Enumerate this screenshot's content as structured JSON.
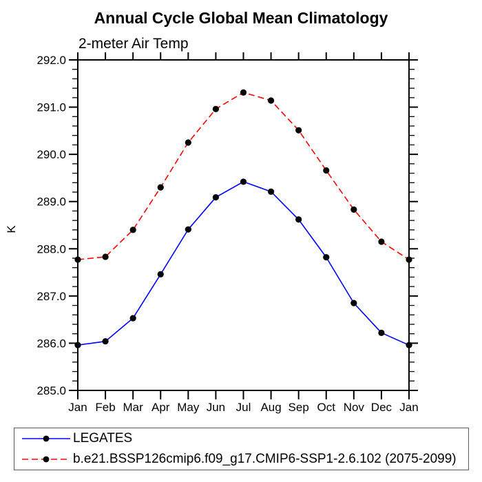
{
  "title": "Annual Cycle Global Mean Climatology",
  "subtitle": "2-meter Air Temp",
  "chart_data": {
    "type": "line",
    "title": "Annual Cycle Global Mean Climatology",
    "subtitle": "2-meter Air Temp",
    "xlabel": "",
    "ylabel": "K",
    "categories": [
      "Jan",
      "Feb",
      "Mar",
      "Apr",
      "May",
      "Jun",
      "Jul",
      "Aug",
      "Sep",
      "Oct",
      "Nov",
      "Dec",
      "Jan"
    ],
    "series": [
      {
        "name": "LEGATES",
        "line_color": "#0000ff",
        "line_style": "solid",
        "marker": "filled-circle",
        "marker_color": "#000000",
        "values": [
          285.96,
          286.04,
          286.53,
          287.46,
          288.41,
          289.09,
          289.42,
          289.21,
          288.62,
          287.82,
          286.85,
          286.22,
          285.96
        ]
      },
      {
        "name": "b.e21.BSSP126cmip6.f09_g17.CMIP6-SSP1-2.6.102 (2075-2099)",
        "line_color": "#ff0000",
        "line_style": "dashed",
        "marker": "filled-circle",
        "marker_color": "#000000",
        "values": [
          287.77,
          287.83,
          288.4,
          289.3,
          290.25,
          290.96,
          291.31,
          291.14,
          290.51,
          289.66,
          288.83,
          288.15,
          287.77
        ]
      }
    ],
    "ylim": [
      285.0,
      292.0
    ],
    "ytick_step": 1.0,
    "yminor_step": 0.2,
    "ytick_labels": [
      "292.0",
      "291.0",
      "290.0",
      "289.0",
      "288.0",
      "287.0",
      "286.0",
      "285.0"
    ],
    "grid": false,
    "frame": true,
    "tick_direction": "out",
    "legend_position": "bottom-left-box",
    "axis_color": "#000000",
    "background_color": "#ffffff"
  }
}
